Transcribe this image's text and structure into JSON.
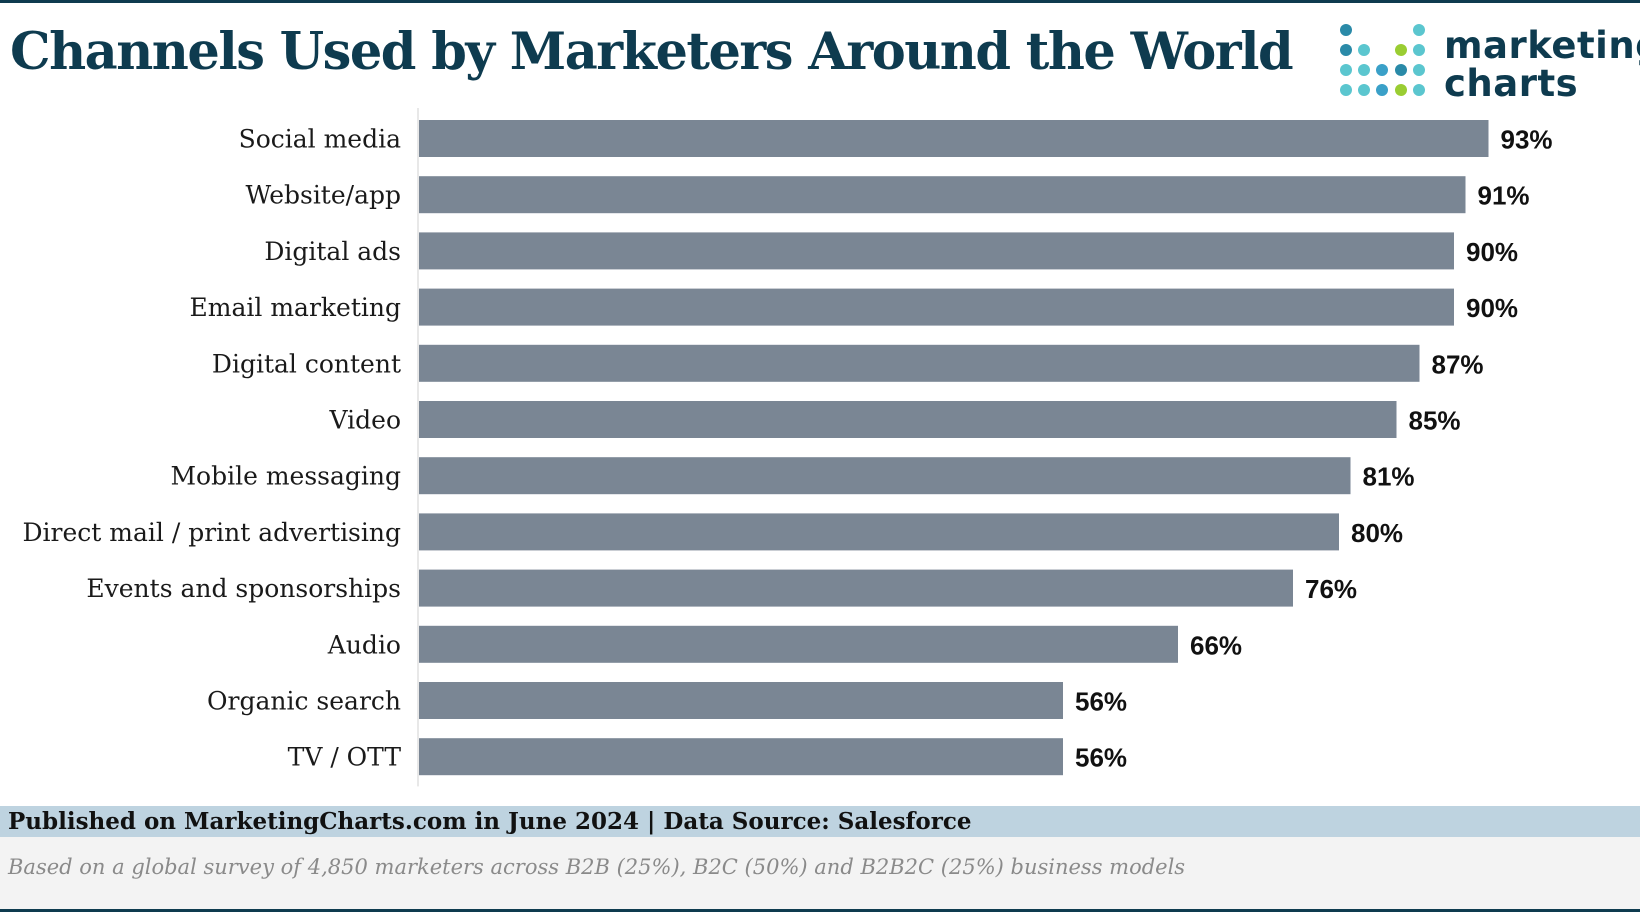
{
  "header": {
    "title": "Channels Used by Marketers Around the World",
    "logo": {
      "line1": "marketing",
      "line2": "charts",
      "dot_colors": [
        "#2a8aa8",
        "#5bc6cf",
        "#9acd32",
        "#3aa0c8"
      ]
    }
  },
  "footer": {
    "source": "Published on MarketingCharts.com in June 2024 | Data Source: Salesforce",
    "note": "Based on a global survey of 4,850 marketers across B2B (25%), B2C (50%) and B2B2C (25%) business models"
  },
  "colors": {
    "bar": "#7a8694",
    "title": "#0e3b4f",
    "source_band": "#bed3e0"
  },
  "chart_data": {
    "type": "bar",
    "orientation": "horizontal",
    "categories": [
      "Social media",
      "Website/app",
      "Digital ads",
      "Email marketing",
      "Digital content",
      "Video",
      "Mobile messaging",
      "Direct mail / print advertising",
      "Events and sponsorships",
      "Audio",
      "Organic search",
      "TV / OTT"
    ],
    "values": [
      93,
      91,
      90,
      90,
      87,
      85,
      81,
      80,
      76,
      66,
      56,
      56
    ],
    "value_labels": [
      "93%",
      "91%",
      "90%",
      "90%",
      "87%",
      "85%",
      "81%",
      "80%",
      "76%",
      "66%",
      "56%",
      "56%"
    ],
    "xlim": [
      0,
      100
    ],
    "grid": false,
    "legend": "none"
  }
}
